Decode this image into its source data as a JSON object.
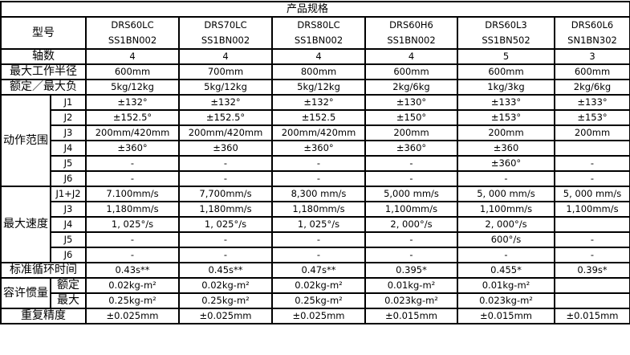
{
  "title": "产品规格",
  "model_label": "型号",
  "models": [
    "DRS60LC\nSS1BN002",
    "DRS70LC\nSS1BN002",
    "DRS80LC\nSS1BN002",
    "DRS60H6\nSS1BN002",
    "DRS60L3\nSS1BN502",
    "DRS60L6\nSN1BN302"
  ],
  "rows": [
    {
      "label": "轴数",
      "values": [
        "4",
        "4",
        "4",
        "4",
        "5",
        "3"
      ]
    },
    {
      "label": "最大工作半径",
      "values": [
        "600mm",
        "700mm",
        "800mm",
        "600mm",
        "600mm",
        "600mm"
      ]
    },
    {
      "label": "额定／最大负",
      "values": [
        "5kg/12kg",
        "5kg/12kg",
        "5kg/12kg",
        "2kg/6kg",
        "1kg/3kg",
        "2kg/6kg"
      ]
    },
    {
      "group": "动作范围",
      "sub": "J1",
      "values": [
        "±132°",
        "±132°",
        "±132°",
        "±130°",
        "±133°",
        "±133°"
      ]
    },
    {
      "group": "动作范围",
      "sub": "J2",
      "values": [
        "±152.5°",
        "±152.5°",
        "±152.5",
        "±150°",
        "±153°",
        "±153°"
      ]
    },
    {
      "group": "动作范围",
      "sub": "J3",
      "values": [
        "200mm/420mm",
        "200mm/420mm",
        "200mm/420mm",
        "200mm",
        "200mm",
        "200mm"
      ]
    },
    {
      "group": "动作范围",
      "sub": "J4",
      "values": [
        "±360°",
        "±360",
        "±360°",
        "±360°",
        "±360",
        ""
      ]
    },
    {
      "group": "动作范围",
      "sub": "J5",
      "values": [
        "-",
        "-",
        "-",
        "-",
        "±360°",
        "-"
      ]
    },
    {
      "group": "动作范围",
      "sub": "J6",
      "values": [
        "-",
        "-",
        "-",
        "-",
        "-",
        "-"
      ]
    },
    {
      "group": "最大速度",
      "sub": "J1+J2",
      "values": [
        "7.100mm/s",
        "7,700mm/s",
        "8,300 mm/s",
        "5,000 mm/s",
        "5, 000 mm/s",
        "5, 000 mm/s"
      ]
    },
    {
      "group": "最大速度",
      "sub": "J3",
      "values": [
        "1,180mm/s",
        "1,180mm/s",
        "1,180mm/s",
        "1,100mm/s",
        "1,100mm/s",
        "1,100mm/s"
      ]
    },
    {
      "group": "最大速度",
      "sub": "J4",
      "values": [
        "1, 025°/s",
        "1, 025°/s",
        "1, 025°/s",
        "2, 000°/s",
        "2, 000°/s",
        ""
      ]
    },
    {
      "group": "最大速度",
      "sub": "J5",
      "values": [
        "-",
        "-",
        "-",
        "-",
        "600°/s",
        "-"
      ]
    },
    {
      "group": "最大速度",
      "sub": "J6",
      "values": [
        "-",
        "-",
        "-",
        "-",
        "-",
        "-"
      ]
    },
    {
      "label": "标准循环时间",
      "values": [
        "0.43s**",
        "0.45s**",
        "0.47s**",
        "0.395*",
        "0.455*",
        "0.39s*"
      ]
    },
    {
      "group": "容许惯量",
      "sub": "额定",
      "values": [
        "0.02kg-m²",
        "0.02kg-m²",
        "0.02kg-m²",
        "0.01kg-m²",
        "0.01kg-m²",
        ""
      ]
    },
    {
      "group": "容许惯量",
      "sub": "最大",
      "values": [
        "0.25kg-m²",
        "0.25kg-m²",
        "0.25kg-m²",
        "0.023kg-m²",
        "0.023kg-m²",
        ""
      ]
    },
    {
      "label": "重复精度",
      "values": [
        "±0.025mm",
        "±0.025mm",
        "±0.025mm",
        "±0.015mm",
        "±0.015mm",
        "±0.015mm"
      ]
    }
  ]
}
